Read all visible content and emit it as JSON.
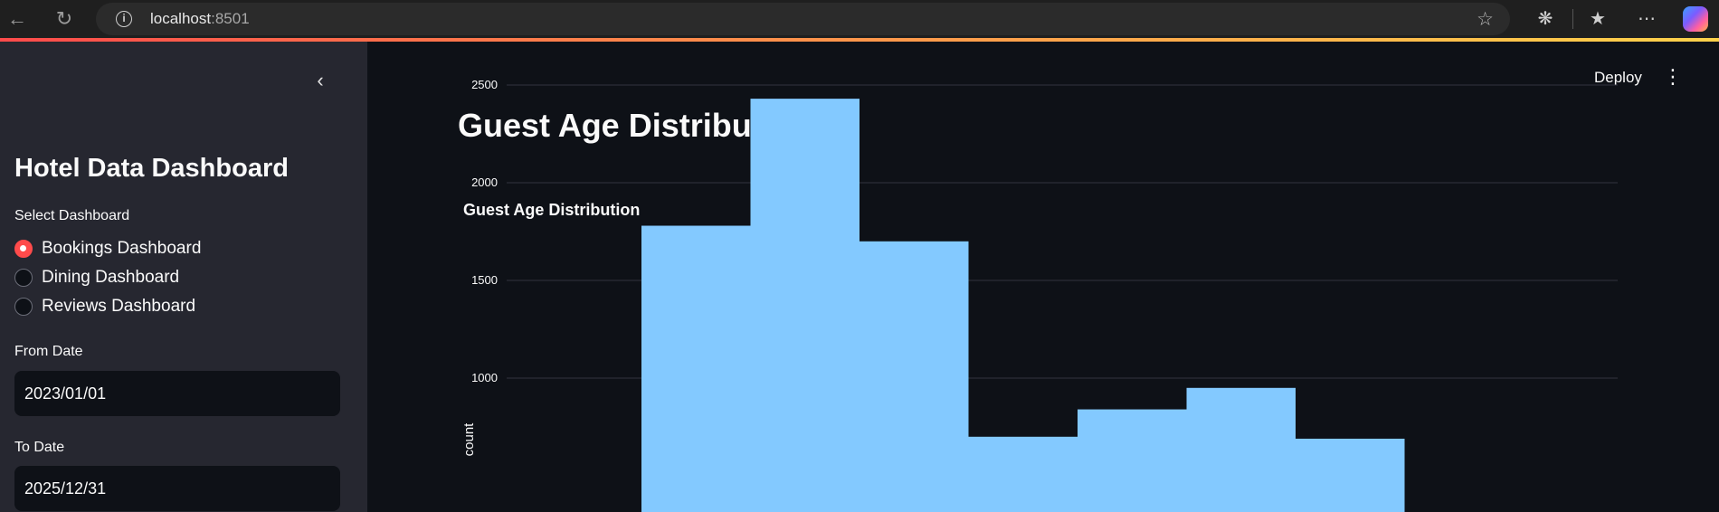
{
  "browser": {
    "url_host": "localhost",
    "url_port": ":8501"
  },
  "sidebar": {
    "title": "Hotel Data Dashboard",
    "select_label": "Select Dashboard",
    "options": [
      {
        "label": "Bookings Dashboard",
        "selected": true
      },
      {
        "label": "Dining Dashboard",
        "selected": false
      },
      {
        "label": "Reviews Dashboard",
        "selected": false
      }
    ],
    "from_label": "From Date",
    "from_value": "2023/01/01",
    "to_label": "To Date",
    "to_value": "2025/12/31"
  },
  "header": {
    "deploy_label": "Deploy"
  },
  "main": {
    "title": "Guest Age Distribution"
  },
  "colors": {
    "accent": "#ff4b4b",
    "bar": "#83c9ff"
  },
  "chart_data": {
    "type": "bar",
    "title": "Guest Age Distribution",
    "xlabel": "",
    "ylabel": "count",
    "y_ticks": [
      1000,
      1500,
      2000,
      2500
    ],
    "ylim": [
      0,
      2650
    ],
    "grid": true,
    "values": [
      1780,
      2430,
      1700,
      700,
      840,
      950,
      690
    ]
  }
}
